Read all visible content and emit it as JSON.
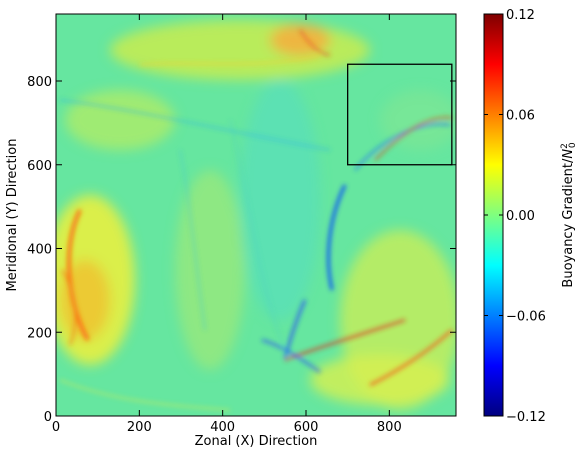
{
  "chart_data": {
    "type": "heatmap",
    "title": "",
    "xlabel": "Zonal (X) Direction",
    "ylabel": "Meridional (Y) Direction",
    "xlim": [
      0,
      960
    ],
    "ylim": [
      0,
      960
    ],
    "x_ticks": [
      0,
      200,
      400,
      600,
      800
    ],
    "x_tick_labels": [
      "0",
      "200",
      "400",
      "600",
      "800"
    ],
    "y_ticks": [
      0,
      200,
      400,
      600,
      800
    ],
    "y_tick_labels": [
      "0",
      "200",
      "400",
      "600",
      "800"
    ],
    "colormap": "jet",
    "colorbar": {
      "label": "Buoyancy Gradient/",
      "label_math_N": "N",
      "label_math_sub": "0",
      "label_math_sup": "2",
      "range": [
        -0.12,
        0.12
      ],
      "ticks": [
        0.12,
        0.06,
        0.0,
        -0.06,
        -0.12
      ],
      "tick_labels": [
        "0.12",
        "0.06",
        "0.00",
        "−0.06",
        "−0.12"
      ]
    },
    "annotation_box": {
      "x": [
        700,
        950
      ],
      "y": [
        600,
        840
      ]
    },
    "grid": false
  }
}
